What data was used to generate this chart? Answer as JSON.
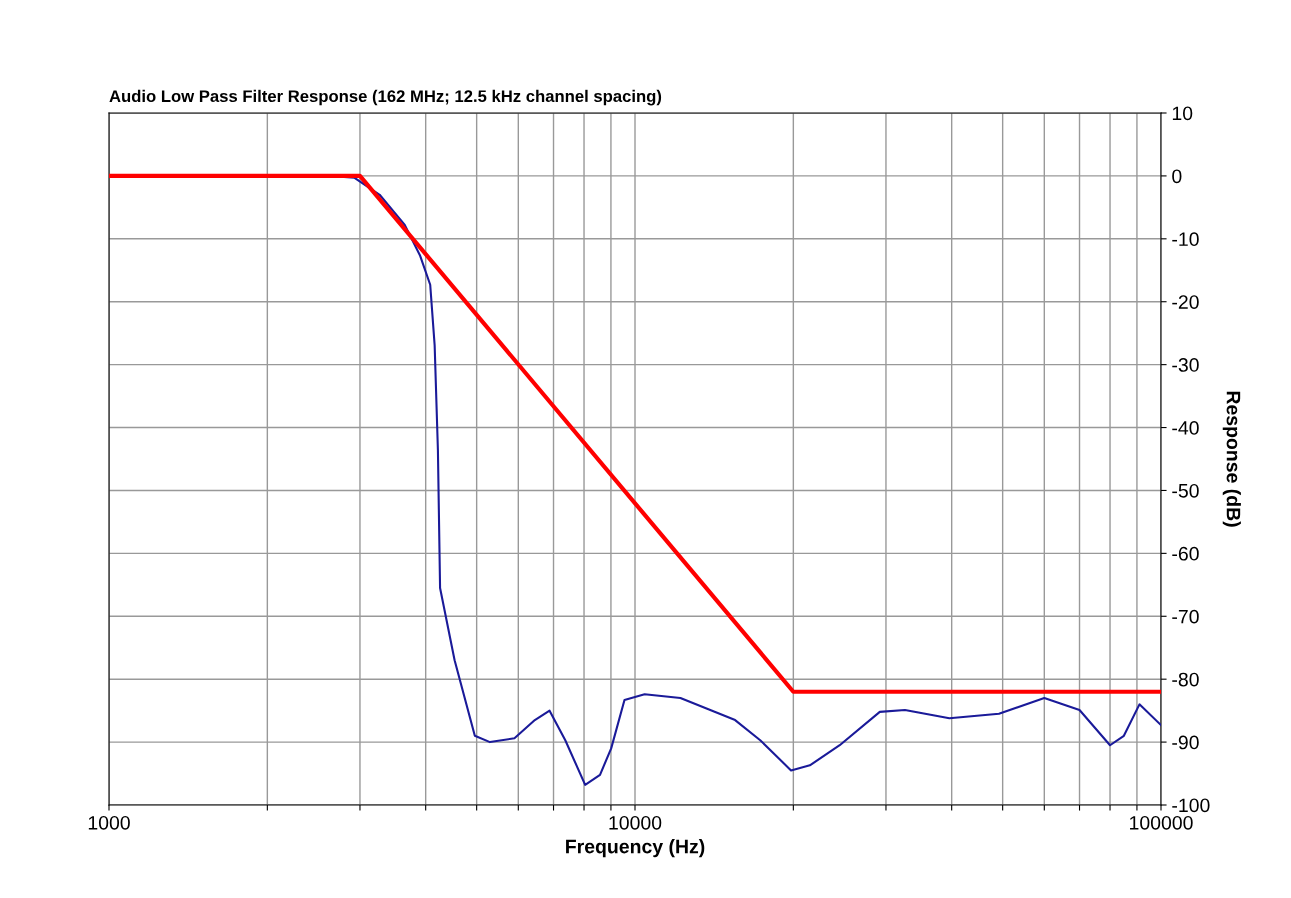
{
  "chart_data": {
    "type": "line",
    "title": "Audio Low Pass Filter Response (162 MHz; 12.5 kHz channel spacing)",
    "xlabel": "Frequency (Hz)",
    "ylabel": "Response (dB)",
    "log": "x",
    "grid": true,
    "marker": "none",
    "line_style": "solid",
    "xlim": [
      1000,
      100000
    ],
    "ylim": [
      -100,
      10
    ],
    "xticks": [
      1000,
      {
        "value": 2000,
        "label": null
      },
      {
        "value": 3000,
        "label": null
      },
      {
        "value": 4000,
        "label": null
      },
      {
        "value": 5000,
        "label": null
      },
      {
        "value": 6000,
        "label": null
      },
      {
        "value": 7000,
        "label": null
      },
      {
        "value": 8000,
        "label": null
      },
      {
        "value": 9000,
        "label": null
      },
      10000,
      {
        "value": 20000,
        "label": null
      },
      {
        "value": 30000,
        "label": null
      },
      {
        "value": 40000,
        "label": null
      },
      {
        "value": 50000,
        "label": null
      },
      {
        "value": 60000,
        "label": null
      },
      {
        "value": 70000,
        "label": null
      },
      {
        "value": 80000,
        "label": null
      },
      {
        "value": 90000,
        "label": null
      },
      100000
    ],
    "yticks": [
      10,
      0,
      -10,
      -20,
      -30,
      -40,
      -50,
      -60,
      -70,
      -80,
      -90,
      -100
    ],
    "series": [
      {
        "color": "#ff0000",
        "x": [
          1000,
          3000,
          20000,
          100000
        ],
        "values": [
          0,
          0,
          -82,
          -82
        ]
      },
      {
        "color": "#1a1a99",
        "x": [
          1000,
          2630,
          2930,
          3270,
          3650,
          3900,
          4080,
          4160,
          4220,
          4260,
          4540,
          4960,
          5300,
          5900,
          6450,
          6880,
          7370,
          8040,
          8580,
          9010,
          9550,
          10430,
          12200,
          15500,
          17300,
          19800,
          21500,
          24500,
          29200,
          32600,
          39600,
          49200,
          60000,
          70000,
          80000,
          85000,
          91000,
          100000
        ],
        "values": [
          0,
          0,
          -0.3,
          -3,
          -7.8,
          -12.6,
          -17.3,
          -26.9,
          -43.6,
          -65.5,
          -77,
          -89,
          -90,
          -89.4,
          -86.5,
          -85,
          -89.7,
          -96.8,
          -95.2,
          -91,
          -83.3,
          -82.4,
          -83,
          -86.5,
          -89.7,
          -94.5,
          -93.7,
          -90.5,
          -85.2,
          -84.9,
          -86.2,
          -85.5,
          -83,
          -84.9,
          -90.5,
          -89,
          -84,
          -87.3
        ]
      }
    ]
  }
}
